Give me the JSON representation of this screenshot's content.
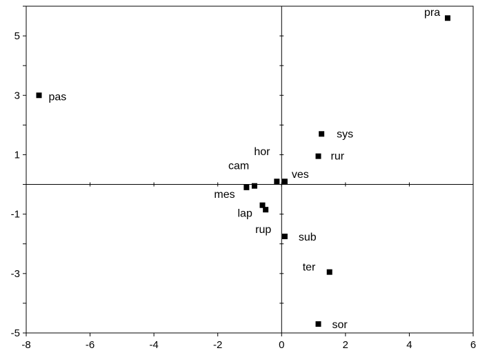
{
  "chart_data": {
    "type": "scatter",
    "title": "",
    "xlabel": "",
    "ylabel": "",
    "xlim": [
      -8,
      6
    ],
    "ylim": [
      -5,
      6
    ],
    "xticks": [
      -8,
      -6,
      -4,
      -2,
      0,
      2,
      4,
      6
    ],
    "yticks": [
      -5,
      -3,
      -1,
      1,
      3,
      5
    ],
    "xtick_labels": [
      "-8",
      "-6",
      "-4",
      "-2",
      "0",
      "2",
      "4",
      "6"
    ],
    "ytick_labels": [
      "-5",
      "-3",
      "-1",
      "1",
      "3",
      "5"
    ],
    "minor_yticks": [
      -4,
      -2,
      0,
      2,
      4,
      6
    ],
    "grid": false,
    "reference_lines": {
      "x": 0,
      "y": 0
    },
    "marker": "square",
    "marker_color": "#000000",
    "points": [
      {
        "label": "pra",
        "x": 5.2,
        "y": 5.6
      },
      {
        "label": "pas",
        "x": -7.6,
        "y": 3.0
      },
      {
        "label": "sys",
        "x": 1.25,
        "y": 1.7
      },
      {
        "label": "rur",
        "x": 1.15,
        "y": 0.95
      },
      {
        "label": "hor",
        "x": -0.15,
        "y": 0.1
      },
      {
        "label": "ves",
        "x": 0.1,
        "y": 0.1
      },
      {
        "label": "cam",
        "x": -0.85,
        "y": -0.05
      },
      {
        "label": "mes",
        "x": -1.1,
        "y": -0.1
      },
      {
        "label": "lap",
        "x": -0.6,
        "y": -0.7
      },
      {
        "label": "rup",
        "x": -0.5,
        "y": -0.85
      },
      {
        "label": "sub",
        "x": 0.1,
        "y": -1.75
      },
      {
        "label": "ter",
        "x": 1.5,
        "y": -2.95
      },
      {
        "label": "sor",
        "x": 1.15,
        "y": -4.7
      }
    ]
  }
}
